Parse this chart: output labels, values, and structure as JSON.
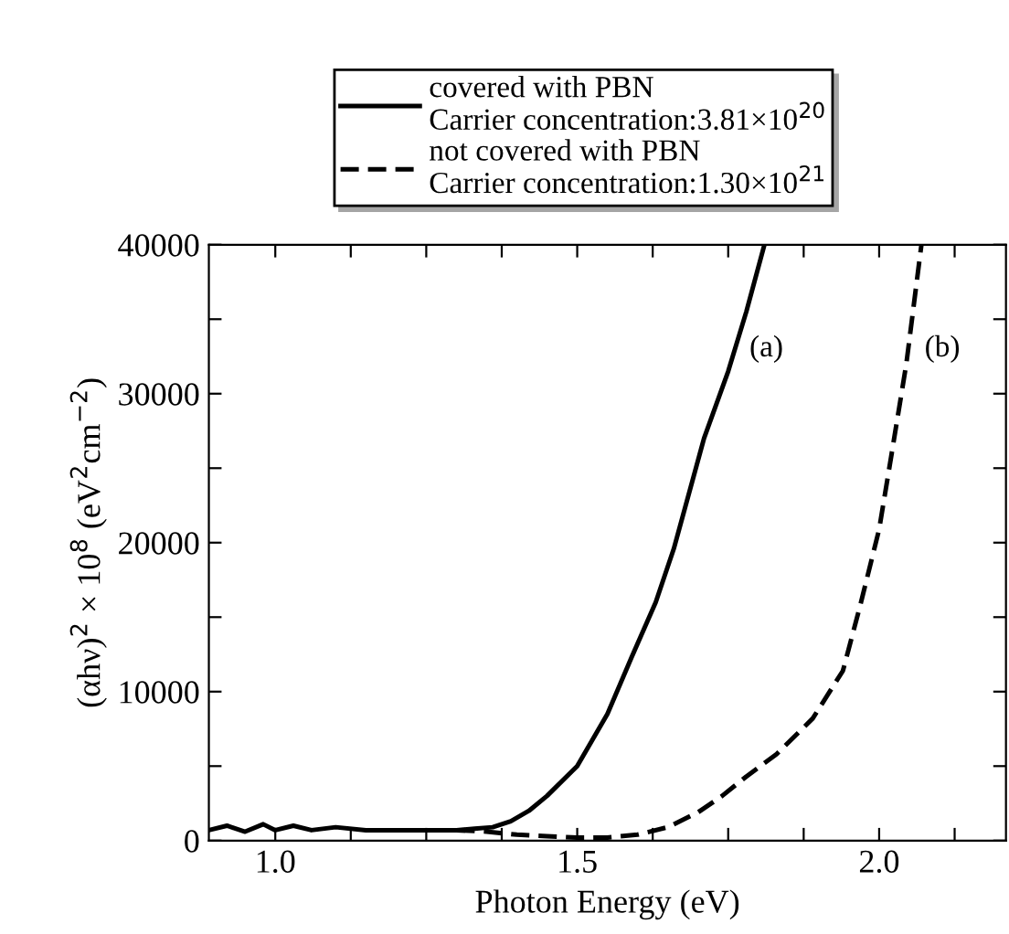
{
  "chart_data": {
    "type": "line",
    "xlabel": "Photon Energy (eV)",
    "ylabel": "(αhν)$^{2}$ × 10$^{8}$ (eV$^{2}$cm$^{−2}$)",
    "xlim": [
      0.89,
      2.21
    ],
    "ylim": [
      0,
      40000
    ],
    "xticks": [
      {
        "value": 1.0,
        "label": "1.0"
      },
      {
        "value": 1.125,
        "label": null
      },
      {
        "value": 1.25,
        "label": null
      },
      {
        "value": 1.375,
        "label": null
      },
      {
        "value": 1.5,
        "label": "1.5"
      },
      {
        "value": 1.625,
        "label": null
      },
      {
        "value": 1.75,
        "label": null
      },
      {
        "value": 1.875,
        "label": null
      },
      {
        "value": 2.0,
        "label": "2.0"
      },
      {
        "value": 2.125,
        "label": null
      }
    ],
    "yticks": [
      0,
      {
        "value": 5000,
        "label": null
      },
      10000,
      {
        "value": 15000,
        "label": null
      },
      20000,
      {
        "value": 25000,
        "label": null
      },
      30000,
      {
        "value": 35000,
        "label": null
      },
      40000
    ],
    "grid": false,
    "legend": "top",
    "marker": "none",
    "series": [
      {
        "name": "covered with PBN\nCarrier concentration:3.81×10$^{20}$",
        "color": "#000000",
        "line_style": "solid",
        "x": [
          0.89,
          0.92,
          0.95,
          0.98,
          1.0,
          1.03,
          1.06,
          1.1,
          1.15,
          1.2,
          1.25,
          1.3,
          1.33,
          1.36,
          1.39,
          1.42,
          1.45,
          1.5,
          1.55,
          1.59,
          1.63,
          1.66,
          1.71,
          1.75,
          1.78,
          1.81
        ],
        "values": [
          700,
          1000,
          600,
          1100,
          700,
          1000,
          700,
          900,
          700,
          700,
          700,
          700,
          800,
          900,
          1300,
          2000,
          3000,
          5000,
          8500,
          12300,
          16000,
          19600,
          27000,
          31500,
          35500,
          40000
        ]
      },
      {
        "name": "not covered with PBN\nCarrier concentration:1.30×10$^{21}$",
        "color": "#000000",
        "line_style": "dashed",
        "x": [
          1.3,
          1.35,
          1.4,
          1.45,
          1.5,
          1.55,
          1.6,
          1.65,
          1.7,
          1.74,
          1.78,
          1.83,
          1.89,
          1.94,
          1.97,
          2.0,
          2.02,
          2.045,
          2.07
        ],
        "values": [
          700,
          600,
          400,
          300,
          200,
          200,
          400,
          900,
          1900,
          3000,
          4300,
          5800,
          8200,
          11400,
          16000,
          20900,
          25800,
          32000,
          40000
        ]
      }
    ],
    "annotations": [
      {
        "text": "(a)",
        "x": 1.76,
        "y": 33000
      },
      {
        "text": "(b)",
        "x": 2.05,
        "y": 33000
      }
    ]
  }
}
